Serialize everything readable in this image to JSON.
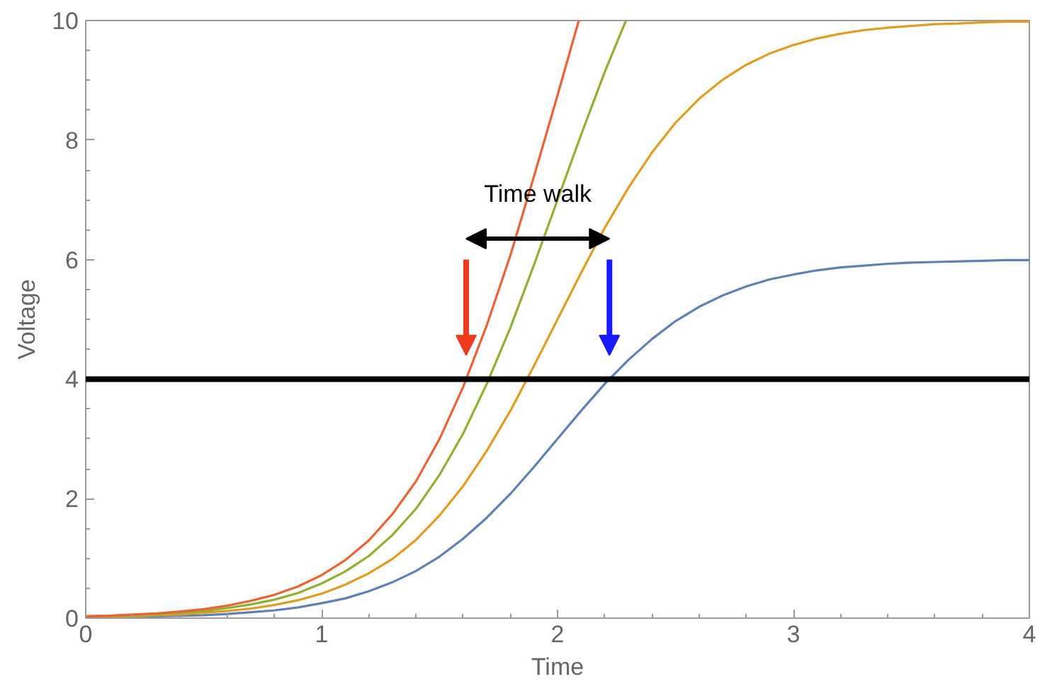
{
  "chart_data": {
    "type": "line",
    "xlabel": "Time",
    "ylabel": "Voltage",
    "xlim": [
      0,
      4
    ],
    "ylim": [
      0,
      10
    ],
    "xticks": [
      0,
      1,
      2,
      3,
      4
    ],
    "yticks": [
      0,
      2,
      4,
      6,
      8,
      10
    ],
    "grid": false,
    "marker": "none",
    "line_style": "solid",
    "x": [
      0,
      0.1,
      0.2,
      0.3,
      0.4,
      0.5,
      0.6,
      0.7,
      0.8,
      0.9,
      1.0,
      1.1,
      1.2,
      1.3,
      1.4,
      1.5,
      1.6,
      1.7,
      1.8,
      1.9,
      2.0,
      2.1,
      2.2,
      2.3,
      2.4,
      2.5,
      2.6,
      2.7,
      2.8,
      2.9,
      3.0,
      3.1,
      3.2,
      3.3,
      3.4,
      3.5,
      3.6,
      3.7,
      3.8,
      3.9,
      4.0
    ],
    "series": [
      {
        "color": "#5e81b5",
        "values": [
          0.01,
          0.02,
          0.02,
          0.03,
          0.04,
          0.05,
          0.07,
          0.1,
          0.13,
          0.18,
          0.25,
          0.33,
          0.45,
          0.6,
          0.79,
          1.03,
          1.33,
          1.68,
          2.08,
          2.53,
          3.0,
          3.47,
          3.92,
          4.32,
          4.67,
          4.97,
          5.21,
          5.4,
          5.55,
          5.67,
          5.75,
          5.82,
          5.87,
          5.9,
          5.93,
          5.95,
          5.96,
          5.97,
          5.98,
          5.99,
          5.99
        ]
      },
      {
        "color": "#e19c24",
        "values": [
          0.02,
          0.03,
          0.03,
          0.05,
          0.06,
          0.09,
          0.12,
          0.16,
          0.22,
          0.3,
          0.41,
          0.56,
          0.75,
          0.99,
          1.31,
          1.72,
          2.21,
          2.8,
          3.47,
          4.22,
          5.0,
          5.78,
          6.53,
          7.2,
          7.79,
          8.29,
          8.69,
          9.01,
          9.26,
          9.45,
          9.59,
          9.7,
          9.78,
          9.84,
          9.88,
          9.91,
          9.94,
          9.95,
          9.97,
          9.98,
          9.98
        ]
      },
      {
        "color": "#8fb032",
        "x": [
          0,
          0.1,
          0.2,
          0.3,
          0.4,
          0.5,
          0.6,
          0.7,
          0.8,
          0.9,
          1.0,
          1.1,
          1.2,
          1.3,
          1.4,
          1.5,
          1.6,
          1.7,
          1.8,
          1.9,
          2.0,
          2.1,
          2.2,
          2.29
        ],
        "values": [
          0.03,
          0.04,
          0.05,
          0.07,
          0.09,
          0.12,
          0.17,
          0.23,
          0.31,
          0.42,
          0.58,
          0.78,
          1.04,
          1.39,
          1.83,
          2.4,
          3.09,
          3.92,
          4.86,
          5.91,
          7.0,
          8.09,
          9.14,
          10
        ]
      },
      {
        "color": "#eb6235",
        "x": [
          0,
          0.1,
          0.2,
          0.3,
          0.4,
          0.5,
          0.6,
          0.7,
          0.8,
          0.9,
          1.0,
          1.1,
          1.2,
          1.3,
          1.4,
          1.5,
          1.6,
          1.7,
          1.8,
          1.9,
          2.0,
          2.09
        ],
        "values": [
          0.03,
          0.04,
          0.06,
          0.08,
          0.11,
          0.15,
          0.21,
          0.29,
          0.39,
          0.53,
          0.72,
          0.97,
          1.3,
          1.74,
          2.29,
          3.0,
          3.87,
          4.9,
          6.07,
          7.39,
          8.75,
          10
        ]
      }
    ],
    "ref_lines": [
      {
        "axis": "y",
        "value": 4,
        "color": "#000000",
        "line_style": "solid"
      }
    ],
    "annotations": [
      "Time walk"
    ]
  }
}
